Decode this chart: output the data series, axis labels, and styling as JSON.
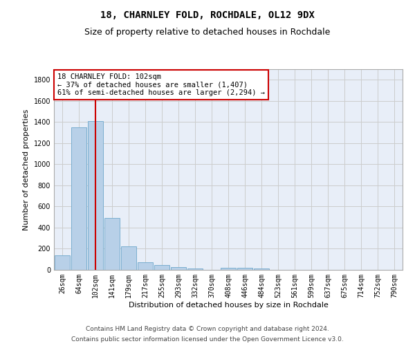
{
  "title": "18, CHARNLEY FOLD, ROCHDALE, OL12 9DX",
  "subtitle": "Size of property relative to detached houses in Rochdale",
  "xlabel": "Distribution of detached houses by size in Rochdale",
  "ylabel": "Number of detached properties",
  "categories": [
    "26sqm",
    "64sqm",
    "102sqm",
    "141sqm",
    "179sqm",
    "217sqm",
    "255sqm",
    "293sqm",
    "332sqm",
    "370sqm",
    "408sqm",
    "446sqm",
    "484sqm",
    "523sqm",
    "561sqm",
    "599sqm",
    "637sqm",
    "675sqm",
    "714sqm",
    "752sqm",
    "790sqm"
  ],
  "values": [
    135,
    1350,
    1410,
    490,
    225,
    75,
    45,
    25,
    15,
    0,
    20,
    20,
    15,
    0,
    0,
    0,
    0,
    0,
    0,
    0,
    0
  ],
  "bar_color": "#b8d0e8",
  "bar_edge_color": "#7aaed0",
  "vline_x_index": 2,
  "vline_color": "#cc0000",
  "annotation_line1": "18 CHARNLEY FOLD: 102sqm",
  "annotation_line2": "← 37% of detached houses are smaller (1,407)",
  "annotation_line3": "61% of semi-detached houses are larger (2,294) →",
  "annotation_box_color": "#cc0000",
  "ylim": [
    0,
    1900
  ],
  "yticks": [
    0,
    200,
    400,
    600,
    800,
    1000,
    1200,
    1400,
    1600,
    1800
  ],
  "grid_color": "#cccccc",
  "background_color": "#e8eef8",
  "footer_line1": "Contains HM Land Registry data © Crown copyright and database right 2024.",
  "footer_line2": "Contains public sector information licensed under the Open Government Licence v3.0.",
  "title_fontsize": 10,
  "subtitle_fontsize": 9,
  "axis_label_fontsize": 8,
  "tick_fontsize": 7,
  "annotation_fontsize": 7.5,
  "footer_fontsize": 6.5
}
